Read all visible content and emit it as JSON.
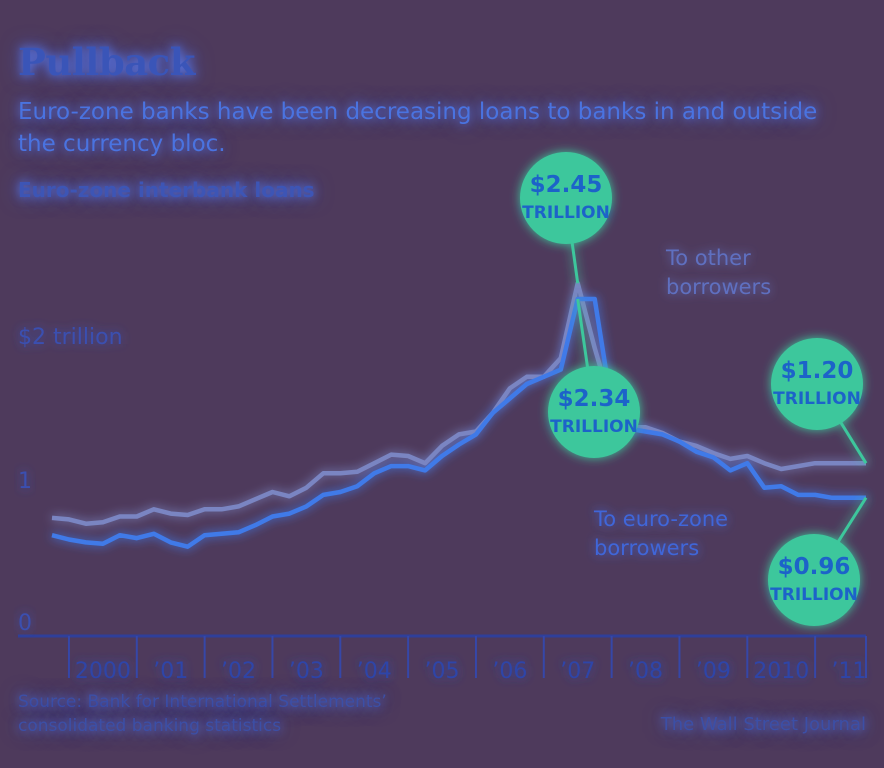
{
  "title": "Pullback",
  "subtitle": "Euro-zone banks have been decreasing loans to banks in and outside the currency bloc.",
  "chart_label": "Euro-zone interbank loans",
  "source": "Source: Bank for International Settlements’\nconsolidated banking statistics",
  "credit": "The Wall Street Journal",
  "colors": {
    "background": "#4e3a5c",
    "to_other": "#7a85c2",
    "to_eurozone": "#3f7ae8",
    "callout": "#3ec79c",
    "callout_text": "#1e63c9"
  },
  "chart_data": {
    "type": "line",
    "ylim": [
      0,
      2.6
    ],
    "y_ticks": [
      {
        "value": 0,
        "label": "0"
      },
      {
        "value": 1,
        "label": "1"
      },
      {
        "value": 2,
        "label": "$2 trillion"
      }
    ],
    "x_range": [
      1999.75,
      2011.75
    ],
    "x_ticks": [
      {
        "value": 2000,
        "label": "2000"
      },
      {
        "value": 2001,
        "label": "’01"
      },
      {
        "value": 2002,
        "label": "’02"
      },
      {
        "value": 2003,
        "label": "’03"
      },
      {
        "value": 2004,
        "label": "’04"
      },
      {
        "value": 2005,
        "label": "’05"
      },
      {
        "value": 2006,
        "label": "’06"
      },
      {
        "value": 2007,
        "label": "’07"
      },
      {
        "value": 2008,
        "label": "’08"
      },
      {
        "value": 2009,
        "label": "’09"
      },
      {
        "value": 2010,
        "label": "2010"
      },
      {
        "value": 2011,
        "label": "’11"
      }
    ],
    "x": [
      1999.75,
      2000,
      2000.25,
      2000.5,
      2000.75,
      2001,
      2001.25,
      2001.5,
      2001.75,
      2002,
      2002.25,
      2002.5,
      2002.75,
      2003,
      2003.25,
      2003.5,
      2003.75,
      2004,
      2004.25,
      2004.5,
      2004.75,
      2005,
      2005.25,
      2005.5,
      2005.75,
      2006,
      2006.25,
      2006.5,
      2006.75,
      2007,
      2007.25,
      2007.5,
      2007.75,
      2008,
      2008.25,
      2008.5,
      2008.75,
      2009,
      2009.25,
      2009.5,
      2009.75,
      2010,
      2010.25,
      2010.5,
      2010.75,
      2011,
      2011.25,
      2011.5,
      2011.75
    ],
    "series": [
      {
        "key": "other",
        "name": "To other borrowers",
        "values": [
          0.82,
          0.81,
          0.78,
          0.79,
          0.83,
          0.83,
          0.88,
          0.85,
          0.84,
          0.88,
          0.88,
          0.9,
          0.95,
          1.0,
          0.97,
          1.03,
          1.13,
          1.13,
          1.14,
          1.2,
          1.26,
          1.25,
          1.2,
          1.32,
          1.4,
          1.42,
          1.55,
          1.72,
          1.8,
          1.8,
          1.93,
          2.45,
          2.0,
          1.6,
          1.45,
          1.45,
          1.41,
          1.35,
          1.32,
          1.27,
          1.23,
          1.25,
          1.2,
          1.16,
          1.18,
          1.2,
          1.2,
          1.2,
          1.2
        ]
      },
      {
        "key": "euro",
        "name": "To euro-zone borrowers",
        "values": [
          0.7,
          0.67,
          0.65,
          0.64,
          0.7,
          0.68,
          0.71,
          0.65,
          0.62,
          0.7,
          0.71,
          0.72,
          0.77,
          0.83,
          0.85,
          0.9,
          0.98,
          1.0,
          1.04,
          1.13,
          1.18,
          1.18,
          1.15,
          1.25,
          1.33,
          1.4,
          1.55,
          1.65,
          1.75,
          1.8,
          1.85,
          2.34,
          2.34,
          1.6,
          1.44,
          1.42,
          1.4,
          1.35,
          1.28,
          1.24,
          1.15,
          1.2,
          1.03,
          1.04,
          0.98,
          0.98,
          0.96,
          0.96,
          0.96
        ]
      }
    ],
    "annotations": [
      {
        "value": "$2.45",
        "unit": "TRILLION",
        "points_to": "other-peak"
      },
      {
        "value": "$2.34",
        "unit": "TRILLION",
        "points_to": "euro-peak"
      },
      {
        "value": "$1.20",
        "unit": "TRILLION",
        "points_to": "other-end"
      },
      {
        "value": "$0.96",
        "unit": "TRILLION",
        "points_to": "euro-end"
      }
    ],
    "series_labels": [
      {
        "text_lines": [
          "To other",
          "borrowers"
        ],
        "series": "other"
      },
      {
        "text_lines": [
          "To euro-zone",
          "borrowers"
        ],
        "series": "euro"
      }
    ]
  }
}
